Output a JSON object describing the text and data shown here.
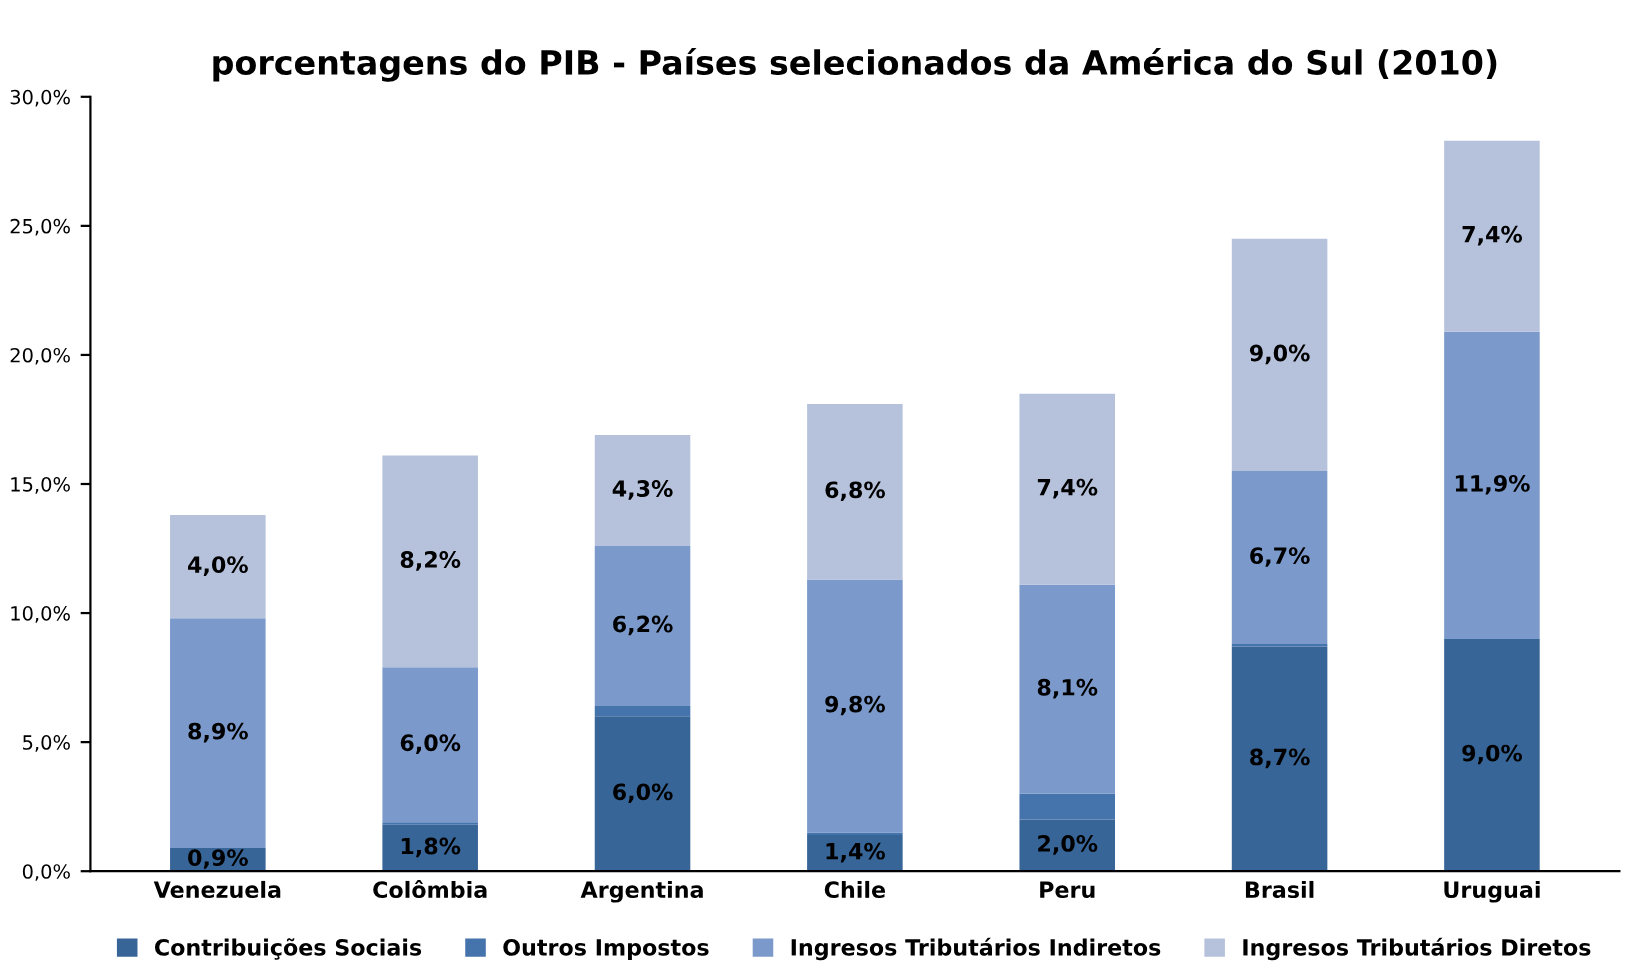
{
  "chart_data": {
    "type": "bar",
    "stacked": true,
    "title": "porcentagens do PIB - Países selecionados da América do Sul (2010)",
    "categories": [
      "Venezuela",
      "Colômbia",
      "Argentina",
      "Chile",
      "Peru",
      "Brasil",
      "Uruguai"
    ],
    "series": [
      {
        "name": "Contribuições Sociais",
        "color": "#386597",
        "values": [
          0.9,
          1.8,
          6.0,
          1.4,
          2.0,
          8.7,
          9.0
        ],
        "value_labels": [
          "0,9%",
          "1,8%",
          "6,0%",
          "1,4%",
          "2,0%",
          "8,7%",
          "9,0%"
        ]
      },
      {
        "name": "Outros Impostos",
        "color": "#4573ac",
        "values": [
          0.0,
          0.1,
          0.4,
          0.1,
          1.0,
          0.1,
          0.0
        ],
        "value_labels": [
          null,
          null,
          null,
          null,
          null,
          null,
          null
        ]
      },
      {
        "name": "Ingresos Tributários Indiretos",
        "color": "#7b9acb",
        "values": [
          8.9,
          6.0,
          6.2,
          9.8,
          8.1,
          6.7,
          11.9
        ],
        "value_labels": [
          "8,9%",
          "6,0%",
          "6,2%",
          "9,8%",
          "8,1%",
          "6,7%",
          "11,9%"
        ]
      },
      {
        "name": "Ingresos Tributários Diretos",
        "color": "#b6c2dc",
        "values": [
          4.0,
          8.2,
          4.3,
          6.8,
          7.4,
          9.0,
          7.4
        ],
        "value_labels": [
          "4,0%",
          "8,2%",
          "4,3%",
          "6,8%",
          "7,4%",
          "9,0%",
          "7,4%"
        ]
      }
    ],
    "ylim": [
      0,
      30
    ],
    "yticks": [
      {
        "value": 0,
        "label": "0,0%"
      },
      {
        "value": 5,
        "label": "5,0%"
      },
      {
        "value": 10,
        "label": "10,0%"
      },
      {
        "value": 15,
        "label": "15,0%"
      },
      {
        "value": 20,
        "label": "20,0%"
      },
      {
        "value": 25,
        "label": "25,0%"
      },
      {
        "value": 30,
        "label": "30,0%"
      }
    ],
    "grid": false,
    "legend": "bottom"
  }
}
